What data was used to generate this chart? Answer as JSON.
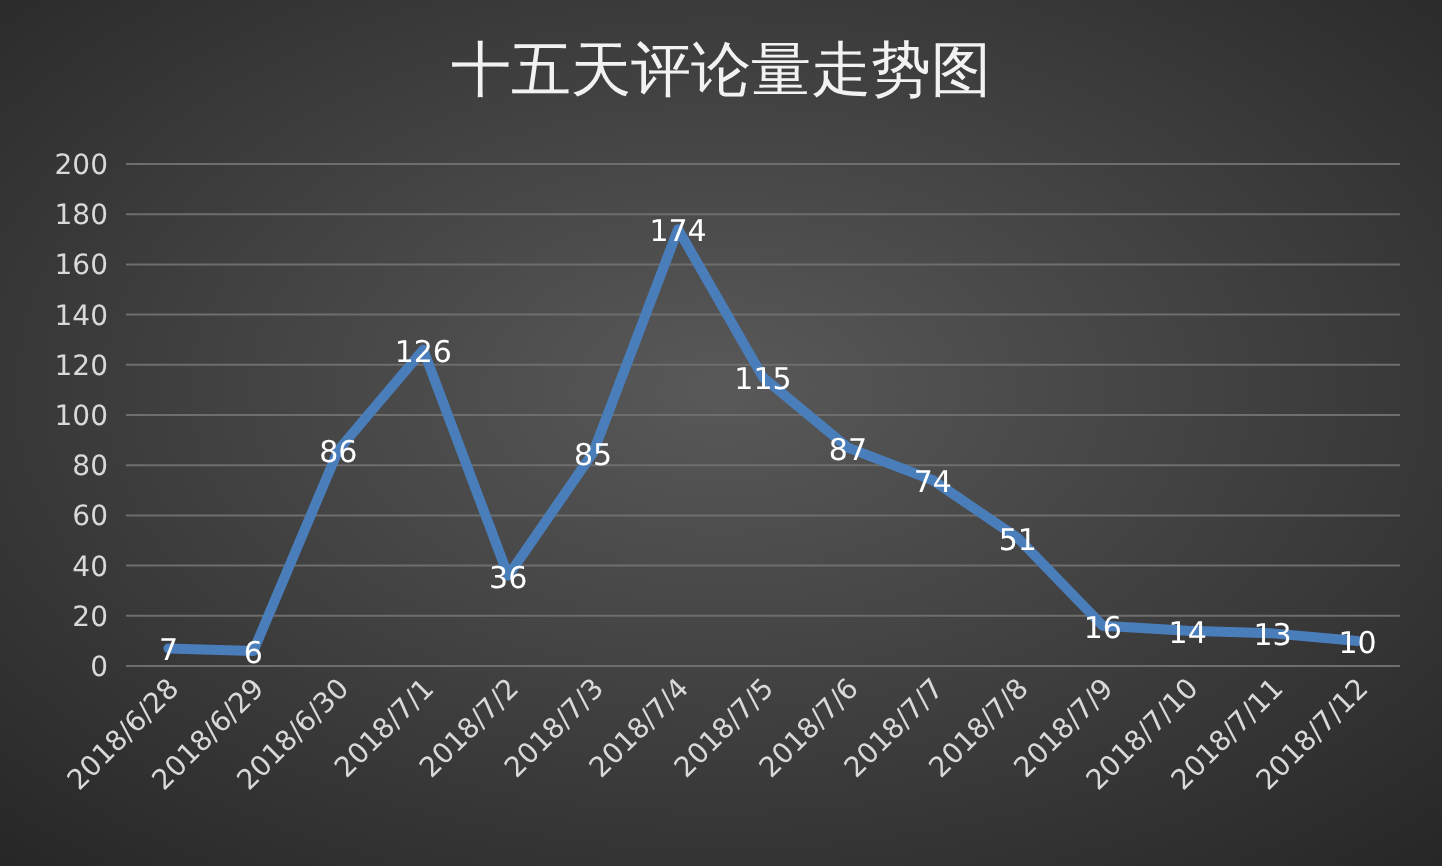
{
  "chart_data": {
    "type": "line",
    "title": "十五天评论量走势图",
    "categories": [
      "2018/6/28",
      "2018/6/29",
      "2018/6/30",
      "2018/7/1",
      "2018/7/2",
      "2018/7/3",
      "2018/7/4",
      "2018/7/5",
      "2018/7/6",
      "2018/7/7",
      "2018/7/8",
      "2018/7/9",
      "2018/7/10",
      "2018/7/11",
      "2018/7/12"
    ],
    "values": [
      7,
      6,
      86,
      126,
      36,
      85,
      174,
      115,
      87,
      74,
      51,
      16,
      14,
      13,
      10
    ],
    "color": "#4a7ebb",
    "ylim": [
      0,
      200
    ],
    "yticks": [
      0,
      20,
      40,
      60,
      80,
      100,
      120,
      140,
      160,
      180,
      200
    ],
    "grid": "y",
    "data_labels": true,
    "line_style": "solid",
    "marker": "none"
  }
}
